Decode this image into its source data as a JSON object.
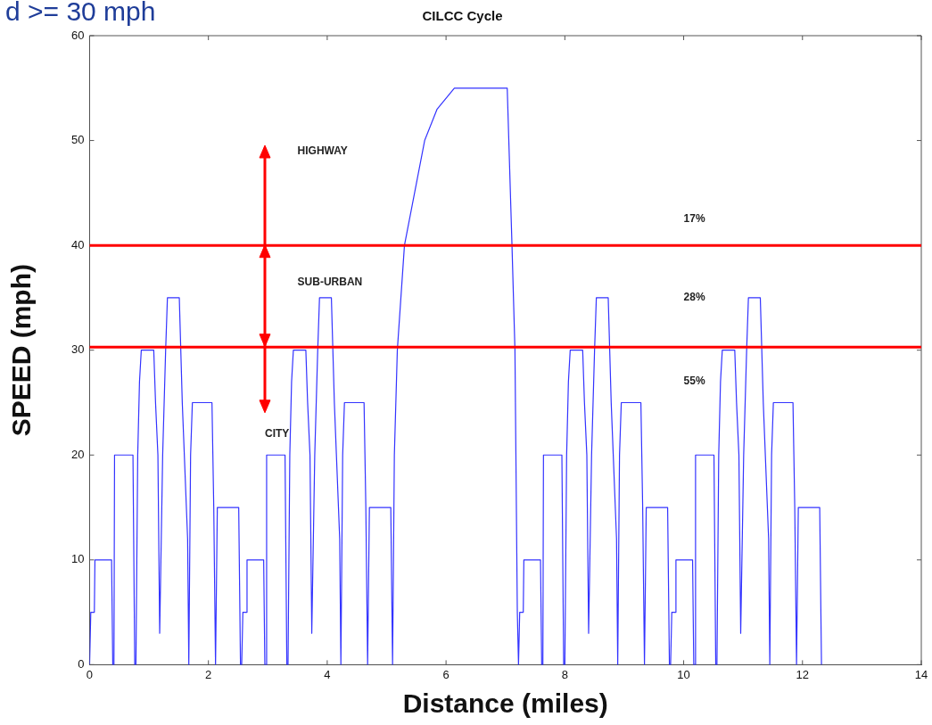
{
  "chart_data": {
    "type": "line",
    "title": "CILCC Cycle",
    "xlabel": "Distance (miles)",
    "ylabel": "SPEED (mph)",
    "xlim": [
      0,
      14
    ],
    "xticks": [
      0,
      2,
      4,
      6,
      8,
      10,
      12,
      14
    ],
    "ylim": [
      0,
      60
    ],
    "yticks": [
      0,
      10,
      20,
      30,
      40,
      50,
      60
    ],
    "grid": false,
    "legend": false,
    "marker": "none",
    "line_style": "solid",
    "series": [
      {
        "color": "#3333ff",
        "x": [
          0,
          0.02,
          0.08,
          0.09,
          0.37,
          0.39,
          0.41,
          0.42,
          0.73,
          0.76,
          0.78,
          0.81,
          0.84,
          0.87,
          1.08,
          1.11,
          1.15,
          1.18,
          1.23,
          1.28,
          1.31,
          1.51,
          1.56,
          1.65,
          1.67,
          1.7,
          1.73,
          2.06,
          2.09,
          2.12,
          2.15,
          2.51,
          2.54,
          2.56,
          2.58,
          2.64,
          2.65,
          2.93,
          2.95,
          2.97,
          2.98,
          3.29,
          3.32,
          3.34,
          3.37,
          3.4,
          3.43,
          3.64,
          3.67,
          3.71,
          3.74,
          3.79,
          3.84,
          3.87,
          4.07,
          4.12,
          4.21,
          4.23,
          4.26,
          4.29,
          4.62,
          4.65,
          4.68,
          4.71,
          5.07,
          5.1,
          5.11,
          5.13,
          5.18,
          5.3,
          5.64,
          5.85,
          6.14,
          7.03,
          7.11,
          7.16,
          7.2,
          7.22,
          7.24,
          7.3,
          7.31,
          7.59,
          7.61,
          7.63,
          7.64,
          7.95,
          7.98,
          8.0,
          8.03,
          8.06,
          8.09,
          8.3,
          8.33,
          8.37,
          8.4,
          8.45,
          8.5,
          8.53,
          8.73,
          8.78,
          8.87,
          8.89,
          8.92,
          8.95,
          9.28,
          9.31,
          9.34,
          9.37,
          9.73,
          9.76,
          9.78,
          9.8,
          9.86,
          9.87,
          10.15,
          10.17,
          10.19,
          10.2,
          10.51,
          10.54,
          10.56,
          10.59,
          10.62,
          10.65,
          10.86,
          10.89,
          10.93,
          10.96,
          11.01,
          11.06,
          11.09,
          11.29,
          11.34,
          11.43,
          11.45,
          11.48,
          11.51,
          11.84,
          11.87,
          11.9,
          11.93,
          12.29,
          12.32
        ],
        "values": [
          0,
          5,
          5,
          10,
          10,
          0,
          0,
          20,
          20,
          0,
          0,
          20,
          27,
          30,
          30,
          25,
          20,
          3,
          20,
          30,
          35,
          35,
          25,
          12,
          0,
          20,
          25,
          25,
          15,
          0,
          15,
          15,
          0,
          0,
          5,
          5,
          10,
          10,
          0,
          0,
          20,
          20,
          0,
          0,
          20,
          27,
          30,
          30,
          25,
          20,
          3,
          20,
          30,
          35,
          35,
          25,
          12,
          0,
          20,
          25,
          25,
          15,
          0,
          15,
          15,
          0,
          0,
          20,
          30,
          40,
          50,
          53,
          55,
          55,
          40,
          30,
          5,
          0,
          5,
          5,
          10,
          10,
          0,
          0,
          20,
          20,
          0,
          0,
          20,
          27,
          30,
          30,
          25,
          20,
          3,
          20,
          30,
          35,
          35,
          25,
          12,
          0,
          20,
          25,
          25,
          15,
          0,
          15,
          15,
          0,
          0,
          5,
          5,
          10,
          10,
          0,
          0,
          20,
          20,
          0,
          0,
          20,
          27,
          30,
          30,
          25,
          20,
          3,
          20,
          30,
          35,
          35,
          25,
          12,
          0,
          20,
          25,
          25,
          15,
          0,
          15,
          15,
          0
        ]
      }
    ],
    "ref_lines": [
      {
        "axis": "y",
        "value": 40,
        "color": "#ff0000"
      },
      {
        "axis": "y",
        "value": 30.3,
        "color": "#ff0000"
      }
    ],
    "annotations": [
      "d >= 30 mph",
      "HIGHWAY",
      "SUB-URBAN",
      "CITY",
      "17%",
      "28%",
      "55%"
    ]
  }
}
